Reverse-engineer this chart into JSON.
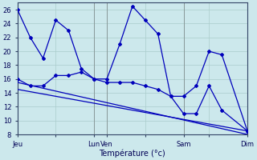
{
  "background_color": "#cce8ec",
  "grid_color": "#aacccc",
  "line_color": "#0000bb",
  "marker_color": "#0000bb",
  "xlabel": "Température (°c)",
  "ylim": [
    8,
    27
  ],
  "yticks": [
    8,
    10,
    12,
    14,
    16,
    18,
    20,
    22,
    24,
    26
  ],
  "xtick_labels": [
    "Jeu",
    "",
    "Lun",
    "Ven",
    "",
    "Sam",
    "",
    "Dim"
  ],
  "xtick_positions": [
    0,
    3,
    6,
    7,
    10,
    13,
    15,
    18
  ],
  "series1_x": [
    0,
    1,
    2,
    3,
    4,
    5,
    6,
    7,
    8,
    9,
    10,
    11,
    12,
    13,
    14,
    15,
    16,
    18
  ],
  "series1_y": [
    26,
    22,
    19,
    24.5,
    23,
    17.5,
    16,
    16,
    21,
    26.5,
    24.5,
    22.5,
    13.5,
    13.5,
    15,
    20,
    19.5,
    8.5
  ],
  "series2_x": [
    0,
    1,
    2,
    3,
    4,
    5,
    6,
    7,
    8,
    9,
    10,
    11,
    12,
    13,
    14,
    15,
    16,
    18
  ],
  "series2_y": [
    16,
    15,
    15,
    16.5,
    16.5,
    17,
    16,
    15.5,
    15.5,
    15.5,
    15,
    14.5,
    13.5,
    11,
    11,
    15,
    11.5,
    8.5
  ],
  "series3_x": [
    0,
    18
  ],
  "series3_y": [
    15.5,
    8
  ],
  "series4_x": [
    0,
    18
  ],
  "series4_y": [
    14.5,
    8.5
  ],
  "vline_positions": [
    0,
    6,
    7,
    13,
    18
  ],
  "figsize": [
    3.2,
    2.0
  ],
  "dpi": 100
}
